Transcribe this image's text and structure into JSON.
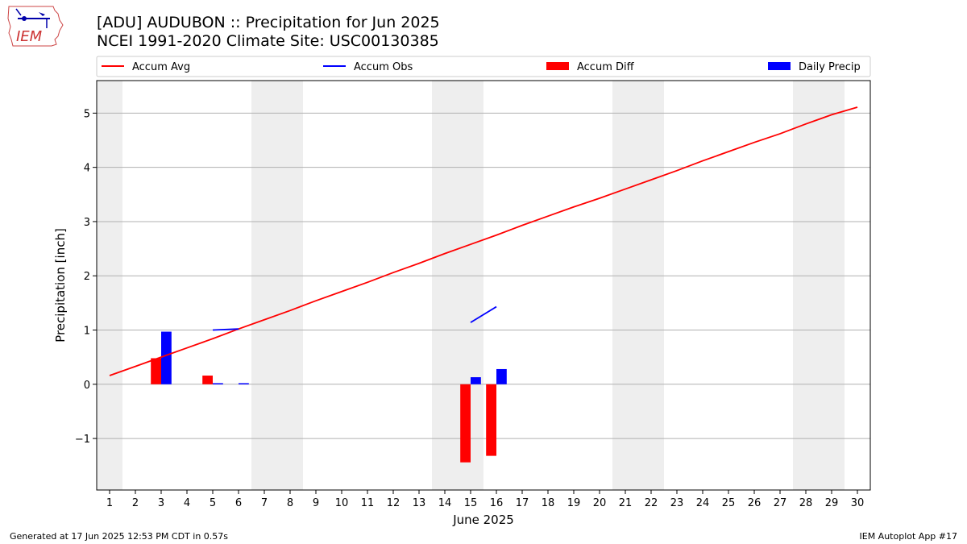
{
  "header": {
    "title_line1": "[ADU] AUDUBON :: Precipitation for Jun 2025",
    "title_line2": "NCEI 1991-2020 Climate Site: USC00130385"
  },
  "logo": {
    "text": "IEM",
    "icon": "iowa-state-outline-logo"
  },
  "footer": {
    "left": "Generated at 17 Jun 2025 12:53 PM CDT in 0.57s",
    "right": "IEM Autoplot App #17"
  },
  "colors": {
    "avg": "#ff0000",
    "obs": "#0000ff",
    "diff": "#ff0000",
    "daily": "#0000ff",
    "weekend": "#eeeeee",
    "grid": "#b0b0b0"
  },
  "chart_data": {
    "type": "bar",
    "title": "[ADU] AUDUBON :: Precipitation for Jun 2025",
    "subtitle": "NCEI 1991-2020 Climate Site: USC00130385",
    "xlabel": "June 2025",
    "ylabel": "Precipitation [inch]",
    "xlim": [
      0.5,
      30.5
    ],
    "ylim": [
      -1.95,
      5.6
    ],
    "yticks": [
      -1,
      0,
      1,
      2,
      3,
      4,
      5
    ],
    "ytick_labels": [
      "−1",
      "0",
      "1",
      "2",
      "3",
      "4",
      "5"
    ],
    "xticks": [
      1,
      2,
      3,
      4,
      5,
      6,
      7,
      8,
      9,
      10,
      11,
      12,
      13,
      14,
      15,
      16,
      17,
      18,
      19,
      20,
      21,
      22,
      23,
      24,
      25,
      26,
      27,
      28,
      29,
      30
    ],
    "grid": "horizontal",
    "legend_position": "top",
    "weekend_spans": [
      [
        0.5,
        1.5
      ],
      [
        6.5,
        8.5
      ],
      [
        13.5,
        15.5
      ],
      [
        20.5,
        22.5
      ],
      [
        27.5,
        29.5
      ]
    ],
    "legend": [
      {
        "label": "Accum Avg",
        "kind": "line",
        "color": "#ff0000"
      },
      {
        "label": "Accum Obs",
        "kind": "line",
        "color": "#0000ff"
      },
      {
        "label": "Accum Diff",
        "kind": "bar",
        "color": "#ff0000"
      },
      {
        "label": "Daily Precip",
        "kind": "bar",
        "color": "#0000ff"
      }
    ],
    "series": [
      {
        "name": "Accum Avg",
        "type": "line",
        "x": [
          1,
          2,
          3,
          4,
          5,
          6,
          7,
          8,
          9,
          10,
          11,
          12,
          13,
          14,
          15,
          16,
          17,
          18,
          19,
          20,
          21,
          22,
          23,
          24,
          25,
          26,
          27,
          28,
          29,
          30
        ],
        "values": [
          0.16,
          0.33,
          0.5,
          0.67,
          0.84,
          1.02,
          1.19,
          1.36,
          1.54,
          1.71,
          1.88,
          2.06,
          2.23,
          2.41,
          2.58,
          2.75,
          2.93,
          3.1,
          3.27,
          3.43,
          3.6,
          3.77,
          3.94,
          4.12,
          4.29,
          4.46,
          4.62,
          4.8,
          4.97,
          5.11
        ]
      },
      {
        "name": "Accum Obs",
        "type": "line",
        "segments": [
          {
            "x": [
              5,
              6
            ],
            "values": [
              1.0,
              1.02
            ]
          },
          {
            "x": [
              15,
              16
            ],
            "values": [
              1.14,
              1.43
            ]
          }
        ]
      },
      {
        "name": "Accum Diff",
        "type": "bar",
        "x": [
          3,
          5,
          15,
          16
        ],
        "values": [
          0.48,
          0.16,
          -1.44,
          -1.32
        ]
      },
      {
        "name": "Daily Precip",
        "type": "bar",
        "x": [
          3,
          5,
          6,
          15,
          16
        ],
        "values": [
          0.97,
          0.02,
          0.02,
          0.13,
          0.28
        ]
      }
    ]
  }
}
